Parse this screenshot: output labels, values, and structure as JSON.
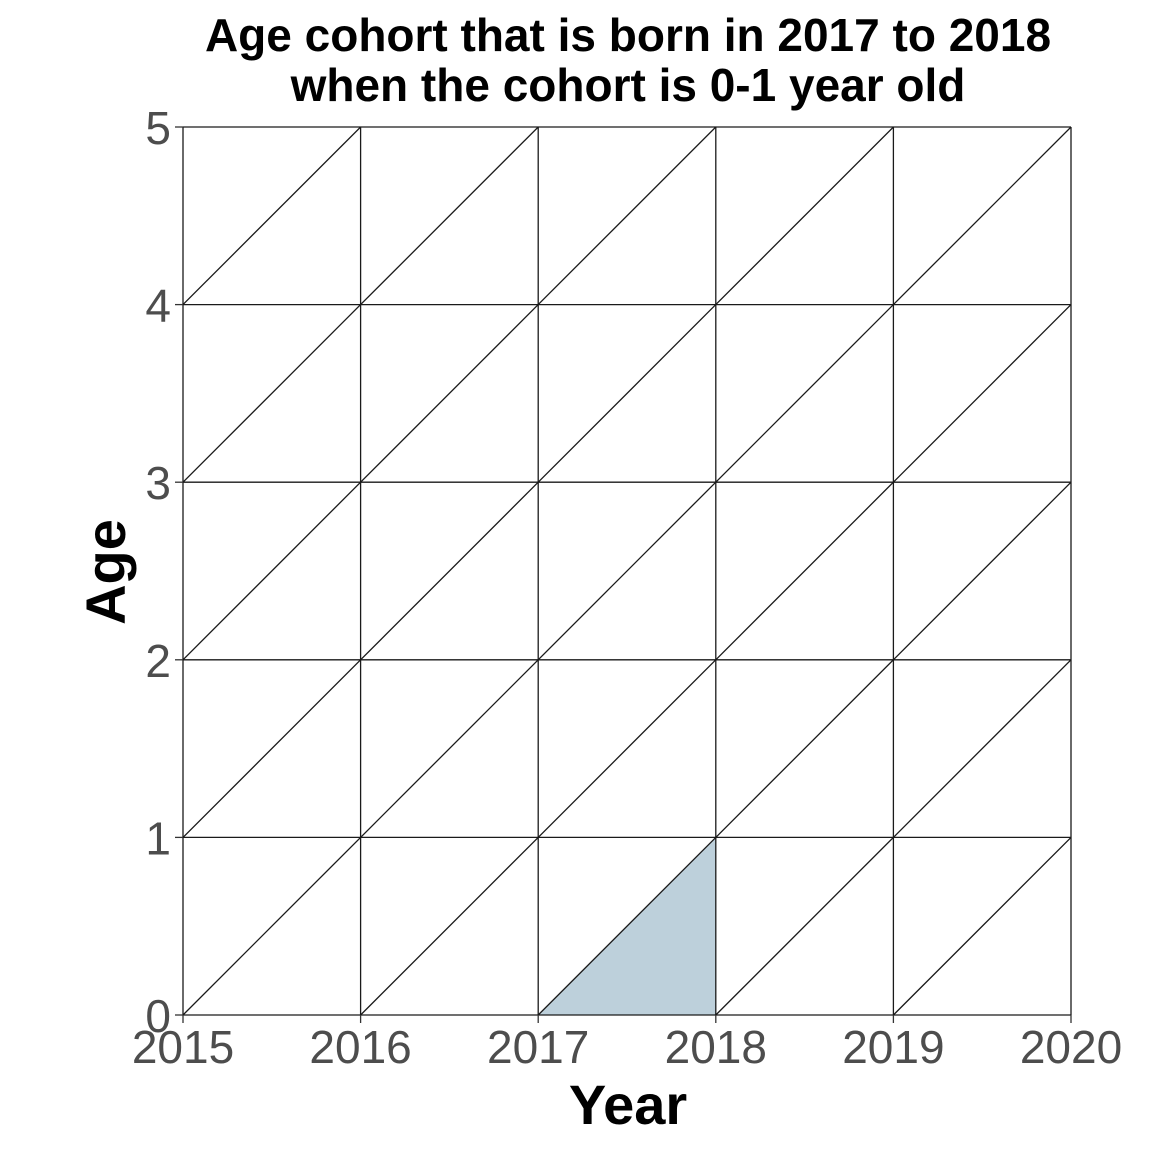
{
  "chart_data": {
    "type": "lexis-diagram",
    "title_lines": [
      "Age cohort that is born in 2017 to 2018",
      "when the cohort is 0-1 year old"
    ],
    "xlabel": "Year",
    "ylabel": "Age",
    "xlim": [
      2015,
      2020
    ],
    "ylim": [
      0,
      5
    ],
    "x_ticks": [
      2015,
      2016,
      2017,
      2018,
      2019,
      2020
    ],
    "y_ticks": [
      0,
      1,
      2,
      3,
      4,
      5
    ],
    "x_tick_labels": [
      "2015",
      "2016",
      "2017",
      "2018",
      "2019",
      "2020"
    ],
    "y_tick_labels": [
      "0",
      "1",
      "2",
      "3",
      "4",
      "5"
    ],
    "grid": true,
    "cell_diagonals": true,
    "highlight": {
      "polygon": [
        [
          2017,
          0
        ],
        [
          2018,
          0
        ],
        [
          2018,
          1
        ]
      ],
      "color": "#bdd0db"
    }
  }
}
